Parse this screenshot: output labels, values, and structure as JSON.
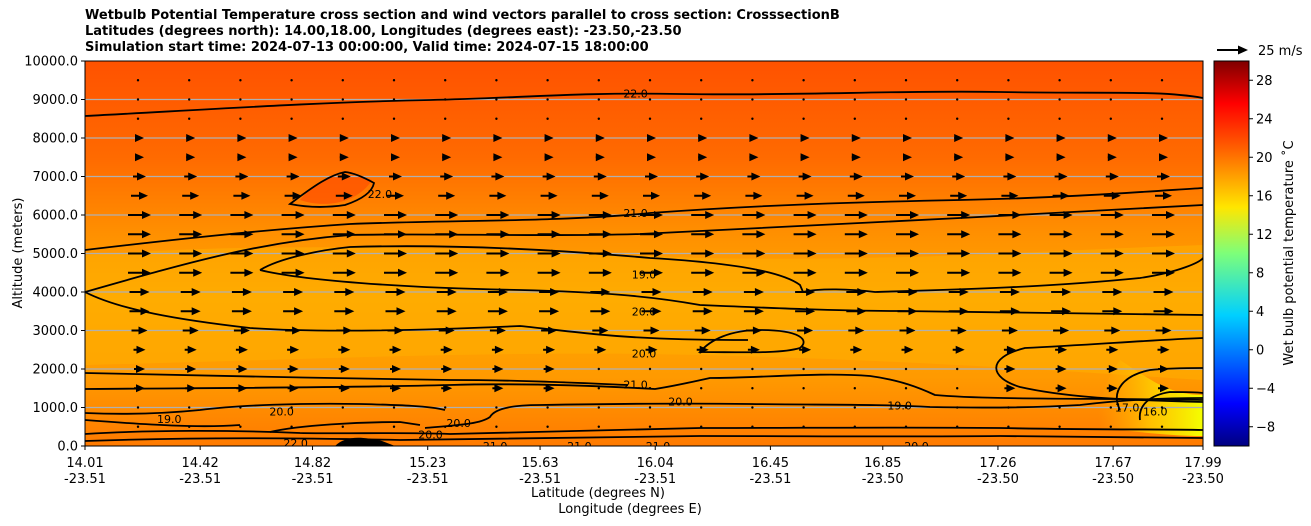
{
  "title": {
    "line1": "Wetbulb Potential Temperature cross section and wind vectors parallel to cross section: CrosssectionB",
    "line2": "Latitudes (degrees north): 14.00,18.00, Longitudes (degrees east): -23.50,-23.50",
    "line3": "Simulation start time: 2024-07-13 00:00:00, Valid time: 2024-07-15 18:00:00"
  },
  "chart_data": {
    "type": "contour",
    "ylabel": "Altitude (meters)",
    "xlabel_lat": "Latitude (degrees N)",
    "xlabel_lon": "Longitude (degrees E)",
    "ylim": [
      0,
      10000
    ],
    "yticks": [
      "0.0",
      "1000.0",
      "2000.0",
      "3000.0",
      "4000.0",
      "5000.0",
      "6000.0",
      "7000.0",
      "8000.0",
      "9000.0",
      "10000.0"
    ],
    "xticks_lat": [
      "14.01",
      "14.42",
      "14.82",
      "15.23",
      "15.63",
      "16.04",
      "16.45",
      "16.85",
      "17.26",
      "17.67",
      "17.99"
    ],
    "xticks_lon": [
      "-23.51",
      "-23.51",
      "-23.51",
      "-23.51",
      "-23.51",
      "-23.51",
      "-23.51",
      "-23.50",
      "-23.50",
      "-23.50",
      "-23.50"
    ],
    "xlim": [
      14.01,
      17.99
    ],
    "colorbar": {
      "label": "Wet bulb potential temperature ˚C",
      "ticks": [
        "−8",
        "−4",
        "0",
        "4",
        "8",
        "12",
        "16",
        "20",
        "24",
        "28"
      ],
      "range": [
        -10,
        30
      ]
    },
    "quiver_key": "25 m/s",
    "contour_labels": [
      {
        "text": "22.0",
        "lat": 15.97,
        "alt": 9150
      },
      {
        "text": "22.0",
        "lat": 15.06,
        "alt": 6550
      },
      {
        "text": "21.0",
        "lat": 15.97,
        "alt": 6050
      },
      {
        "text": "19.0",
        "lat": 16.0,
        "alt": 4450
      },
      {
        "text": "20.0",
        "lat": 16.0,
        "alt": 3500
      },
      {
        "text": "20.0",
        "lat": 16.0,
        "alt": 2400
      },
      {
        "text": "21.0",
        "lat": 15.97,
        "alt": 1600
      },
      {
        "text": "20.0",
        "lat": 16.13,
        "alt": 1150
      },
      {
        "text": "19.0",
        "lat": 16.91,
        "alt": 1050
      },
      {
        "text": "19.0",
        "lat": 14.31,
        "alt": 700
      },
      {
        "text": "20.0",
        "lat": 14.71,
        "alt": 900
      },
      {
        "text": "22.0",
        "lat": 14.76,
        "alt": 80
      },
      {
        "text": "20.0",
        "lat": 15.24,
        "alt": 300
      },
      {
        "text": "20.0",
        "lat": 15.34,
        "alt": 600
      },
      {
        "text": "21.0",
        "lat": 15.47,
        "alt": 0
      },
      {
        "text": "21.0",
        "lat": 15.77,
        "alt": 0
      },
      {
        "text": "21.0",
        "lat": 16.05,
        "alt": 0
      },
      {
        "text": "20.0",
        "lat": 16.97,
        "alt": 0
      },
      {
        "text": "17.0",
        "lat": 17.72,
        "alt": 1000
      },
      {
        "text": "16.0",
        "lat": 17.82,
        "alt": 900
      }
    ],
    "temperature_field_summary": "about 21-22 C aloft above 6000 m, 19-20 C between 1000 and 5000 m, 16-18 C near surface north of 17.6 N",
    "wind_vectors": "mostly southward-to-northward parallel flow, strongest (about 15-20 m/s) between 3000 and 5500 m"
  }
}
